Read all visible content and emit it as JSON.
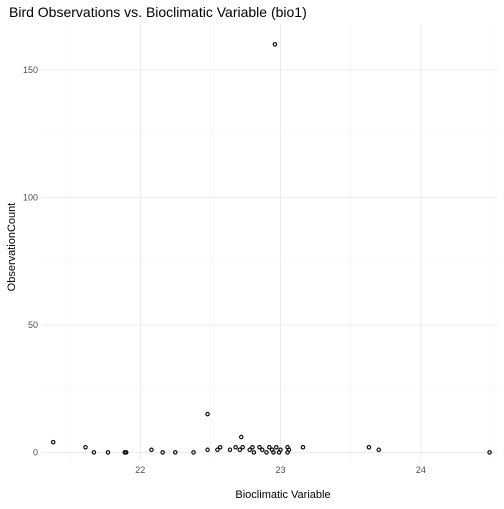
{
  "chart_data": {
    "type": "scatter",
    "title": "Bird Observations vs. Bioclimatic Variable (bio1)",
    "xlabel": "Bioclimatic Variable",
    "ylabel": "ObservationCount",
    "xlim": [
      21.3,
      24.55
    ],
    "ylim": [
      -3,
      168
    ],
    "x_ticks": [
      22,
      23,
      24
    ],
    "y_ticks": [
      0,
      50,
      100,
      150
    ],
    "x_minor_ticks": [
      21.5,
      22.5,
      23.5,
      24.5
    ],
    "y_minor_ticks": [
      25,
      75,
      125
    ],
    "grid": true,
    "legend": false,
    "marker": "hollow-circle",
    "points": [
      {
        "x": 21.38,
        "y": 4
      },
      {
        "x": 21.61,
        "y": 2
      },
      {
        "x": 21.67,
        "y": 0
      },
      {
        "x": 21.77,
        "y": 0
      },
      {
        "x": 21.89,
        "y": 0
      },
      {
        "x": 21.9,
        "y": 0
      },
      {
        "x": 22.08,
        "y": 1
      },
      {
        "x": 22.16,
        "y": 0
      },
      {
        "x": 22.25,
        "y": 0
      },
      {
        "x": 22.38,
        "y": 0
      },
      {
        "x": 22.48,
        "y": 1
      },
      {
        "x": 22.48,
        "y": 15
      },
      {
        "x": 22.55,
        "y": 1
      },
      {
        "x": 22.57,
        "y": 2
      },
      {
        "x": 22.64,
        "y": 1
      },
      {
        "x": 22.68,
        "y": 2
      },
      {
        "x": 22.71,
        "y": 1
      },
      {
        "x": 22.72,
        "y": 6
      },
      {
        "x": 22.73,
        "y": 2
      },
      {
        "x": 22.78,
        "y": 1
      },
      {
        "x": 22.8,
        "y": 2
      },
      {
        "x": 22.81,
        "y": 0
      },
      {
        "x": 22.85,
        "y": 2
      },
      {
        "x": 22.87,
        "y": 1
      },
      {
        "x": 22.9,
        "y": 0
      },
      {
        "x": 22.92,
        "y": 2
      },
      {
        "x": 22.94,
        "y": 1
      },
      {
        "x": 22.95,
        "y": 0
      },
      {
        "x": 22.96,
        "y": 160
      },
      {
        "x": 22.97,
        "y": 2
      },
      {
        "x": 22.99,
        "y": 0
      },
      {
        "x": 23.0,
        "y": 1
      },
      {
        "x": 23.05,
        "y": 2
      },
      {
        "x": 23.05,
        "y": 0
      },
      {
        "x": 23.06,
        "y": 1
      },
      {
        "x": 23.16,
        "y": 2
      },
      {
        "x": 23.63,
        "y": 2
      },
      {
        "x": 23.7,
        "y": 1
      },
      {
        "x": 24.49,
        "y": 0
      }
    ]
  }
}
